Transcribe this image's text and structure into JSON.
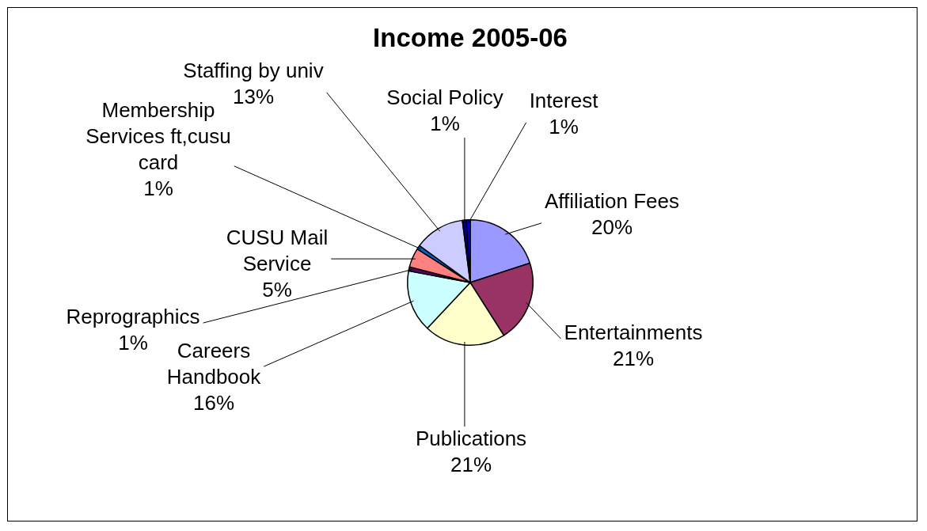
{
  "chart_data": {
    "type": "pie",
    "title": "Income 2005-06",
    "categories": [
      "Affiliation Fees",
      "Entertainments",
      "Publications",
      "Careers Handbook",
      "Reprographics",
      "CUSU Mail Service",
      "Membership Services ft,cusu card",
      "Staffing by univ",
      "Social Policy",
      "Interest"
    ],
    "values": [
      20,
      21,
      21,
      16,
      1,
      5,
      1,
      13,
      1,
      1
    ],
    "value_labels": [
      "20%",
      "21%",
      "21%",
      "16%",
      "1%",
      "5%",
      "1%",
      "13%",
      "1%",
      "1%"
    ],
    "colors": [
      "#9999ff",
      "#993366",
      "#ffffcc",
      "#ccffff",
      "#660066",
      "#ff8080",
      "#0066cc",
      "#ccccff",
      "#000080",
      "#0000cc"
    ],
    "legend": false
  }
}
